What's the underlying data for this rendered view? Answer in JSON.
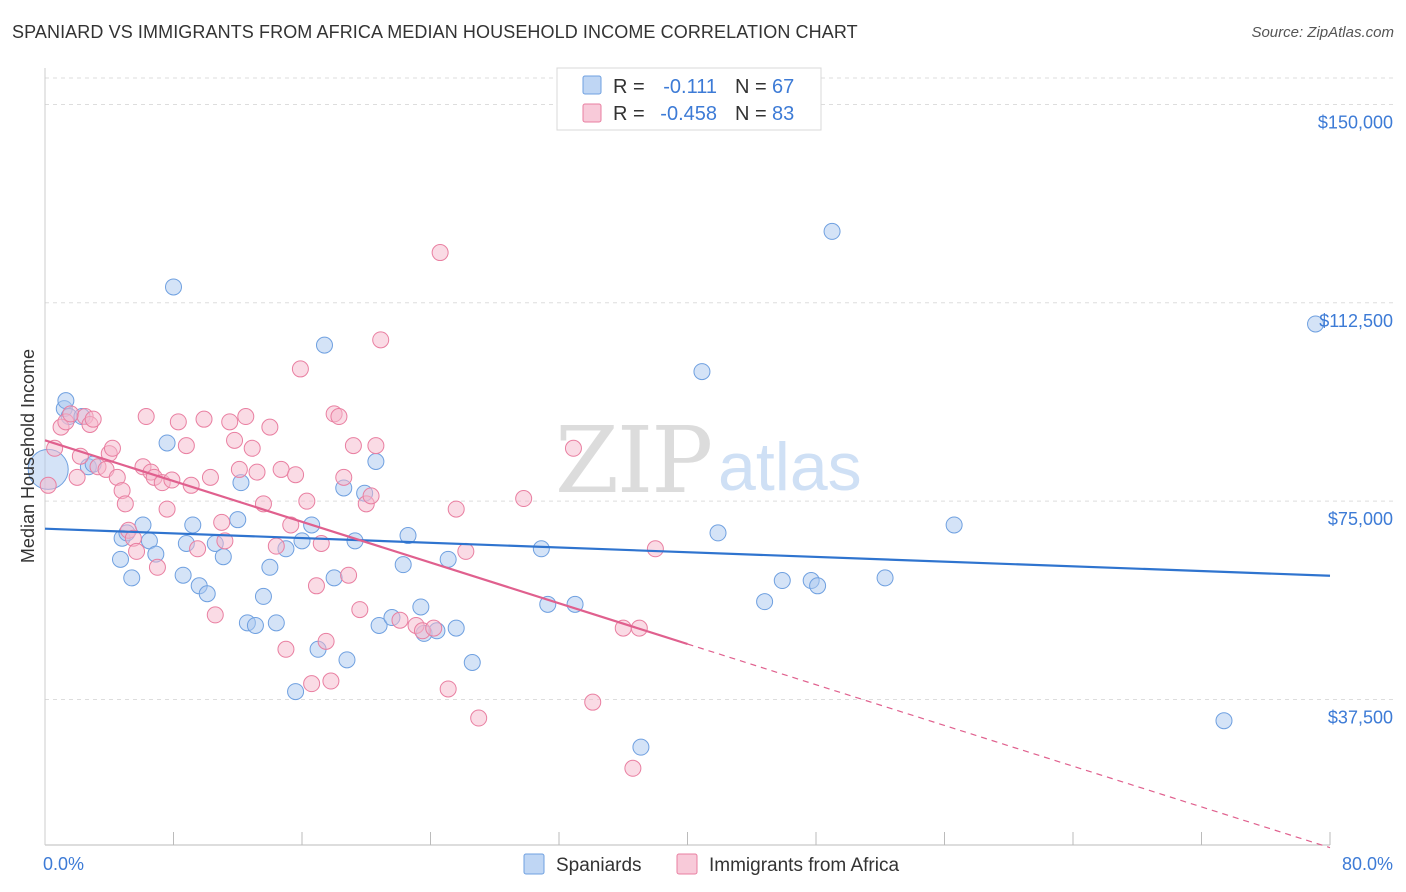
{
  "title": "SPANIARD VS IMMIGRANTS FROM AFRICA MEDIAN HOUSEHOLD INCOME CORRELATION CHART",
  "source": "Source: ZipAtlas.com",
  "watermark": {
    "zip": "ZIP",
    "atlas": "atlas"
  },
  "legend": {
    "rows": [
      {
        "r_label": "R =",
        "r_value": "-0.111",
        "n_label": "N =",
        "n_value": "67",
        "color": "#a9c8f0"
      },
      {
        "r_label": "R =",
        "r_value": "-0.458",
        "n_label": "N =",
        "n_value": "83",
        "color": "#f6b8cc"
      }
    ]
  },
  "bottom_legend": [
    "Spaniards",
    "Immigrants from Africa"
  ],
  "chart_data": {
    "type": "scatter",
    "title": "SPANIARD VS IMMIGRANTS FROM AFRICA MEDIAN HOUSEHOLD INCOME CORRELATION CHART",
    "xlabel": "",
    "ylabel": "Median Household Income",
    "xlim": [
      0,
      80
    ],
    "ylim": [
      10000,
      155000
    ],
    "x_tick_labels": [
      "0.0%",
      "80.0%"
    ],
    "y_ticks": [
      37500,
      75000,
      112500,
      150000
    ],
    "y_tick_labels": [
      "$37,500",
      "$75,000",
      "$112,500",
      "$150,000"
    ],
    "grid": true,
    "legend_position": "top-center",
    "series": [
      {
        "name": "Spaniards",
        "color": "#a9c8f0",
        "stroke": "#6fa0e0",
        "trend_color": "#2f74cf",
        "trend": {
          "x": [
            0,
            80
          ],
          "y": [
            69800,
            60900
          ]
        },
        "points": [
          [
            0.2,
            81000
          ],
          [
            1.2,
            92500
          ],
          [
            1.3,
            94000
          ],
          [
            1.5,
            91000
          ],
          [
            2.3,
            91000
          ],
          [
            2.7,
            81500
          ],
          [
            3.0,
            82000
          ],
          [
            4.7,
            64000
          ],
          [
            4.8,
            68000
          ],
          [
            5.1,
            69000
          ],
          [
            5.4,
            60500
          ],
          [
            6.1,
            70500
          ],
          [
            6.5,
            67500
          ],
          [
            6.9,
            65000
          ],
          [
            7.6,
            86000
          ],
          [
            8.0,
            115500
          ],
          [
            8.6,
            61000
          ],
          [
            8.8,
            67000
          ],
          [
            9.2,
            70500
          ],
          [
            9.6,
            59000
          ],
          [
            10.1,
            57500
          ],
          [
            10.6,
            67000
          ],
          [
            11.1,
            64500
          ],
          [
            12.0,
            71500
          ],
          [
            12.2,
            78500
          ],
          [
            12.6,
            52000
          ],
          [
            13.1,
            51500
          ],
          [
            13.6,
            57000
          ],
          [
            14.0,
            62500
          ],
          [
            14.4,
            52000
          ],
          [
            15.0,
            66000
          ],
          [
            15.6,
            39000
          ],
          [
            16.0,
            67500
          ],
          [
            16.6,
            70500
          ],
          [
            17.0,
            47000
          ],
          [
            17.4,
            104500
          ],
          [
            18.0,
            60500
          ],
          [
            18.6,
            77500
          ],
          [
            18.8,
            45000
          ],
          [
            19.3,
            67500
          ],
          [
            19.9,
            76500
          ],
          [
            20.6,
            82500
          ],
          [
            20.8,
            51500
          ],
          [
            21.6,
            53000
          ],
          [
            22.3,
            63000
          ],
          [
            22.6,
            68500
          ],
          [
            23.4,
            55000
          ],
          [
            23.6,
            50000
          ],
          [
            24.4,
            50500
          ],
          [
            25.1,
            64000
          ],
          [
            25.6,
            51000
          ],
          [
            26.6,
            44500
          ],
          [
            30.9,
            66000
          ],
          [
            31.3,
            55500
          ],
          [
            33.0,
            55500
          ],
          [
            37.1,
            28500
          ],
          [
            40.9,
            99500
          ],
          [
            41.9,
            69000
          ],
          [
            44.8,
            56000
          ],
          [
            45.9,
            60000
          ],
          [
            47.7,
            60000
          ],
          [
            48.1,
            59000
          ],
          [
            49.0,
            126000
          ],
          [
            52.3,
            60500
          ],
          [
            56.6,
            70500
          ],
          [
            73.4,
            33500
          ],
          [
            79.1,
            108500
          ]
        ]
      },
      {
        "name": "Immigrants from Africa",
        "color": "#f6b8cc",
        "stroke": "#e97fa1",
        "trend_color": "#e0608e",
        "trend": {
          "x": [
            0,
            80
          ],
          "y": [
            86500,
            9500
          ]
        },
        "trend_solid_until_x": 40,
        "points": [
          [
            0.2,
            78000
          ],
          [
            0.6,
            85000
          ],
          [
            1.0,
            89000
          ],
          [
            1.3,
            90000
          ],
          [
            1.6,
            91500
          ],
          [
            2.0,
            79500
          ],
          [
            2.2,
            83500
          ],
          [
            2.5,
            91000
          ],
          [
            2.8,
            89500
          ],
          [
            3.0,
            90500
          ],
          [
            3.3,
            81500
          ],
          [
            3.8,
            81000
          ],
          [
            4.0,
            84000
          ],
          [
            4.2,
            85000
          ],
          [
            4.5,
            79500
          ],
          [
            4.8,
            77000
          ],
          [
            5.0,
            74500
          ],
          [
            5.2,
            69500
          ],
          [
            5.5,
            68000
          ],
          [
            5.7,
            65500
          ],
          [
            6.1,
            81500
          ],
          [
            6.3,
            91000
          ],
          [
            6.6,
            80500
          ],
          [
            6.8,
            79500
          ],
          [
            7.0,
            62500
          ],
          [
            7.3,
            78500
          ],
          [
            7.6,
            73500
          ],
          [
            7.9,
            79000
          ],
          [
            8.3,
            90000
          ],
          [
            8.8,
            85500
          ],
          [
            9.1,
            78000
          ],
          [
            9.5,
            66000
          ],
          [
            9.9,
            90500
          ],
          [
            10.3,
            79500
          ],
          [
            10.6,
            53500
          ],
          [
            11.0,
            71000
          ],
          [
            11.2,
            67500
          ],
          [
            11.5,
            90000
          ],
          [
            11.8,
            86500
          ],
          [
            12.1,
            81000
          ],
          [
            12.5,
            91000
          ],
          [
            12.9,
            85000
          ],
          [
            13.2,
            80500
          ],
          [
            13.6,
            74500
          ],
          [
            14.0,
            89000
          ],
          [
            14.4,
            66500
          ],
          [
            14.7,
            81000
          ],
          [
            15.0,
            47000
          ],
          [
            15.3,
            70500
          ],
          [
            15.6,
            80000
          ],
          [
            15.9,
            100000
          ],
          [
            16.3,
            75000
          ],
          [
            16.6,
            40500
          ],
          [
            16.9,
            59000
          ],
          [
            17.2,
            67000
          ],
          [
            17.5,
            48500
          ],
          [
            17.8,
            41000
          ],
          [
            18.0,
            91500
          ],
          [
            18.3,
            91000
          ],
          [
            18.6,
            79500
          ],
          [
            18.9,
            61000
          ],
          [
            19.2,
            85500
          ],
          [
            19.6,
            54500
          ],
          [
            20.0,
            74500
          ],
          [
            20.3,
            76000
          ],
          [
            20.6,
            85500
          ],
          [
            20.9,
            105500
          ],
          [
            22.1,
            52500
          ],
          [
            23.1,
            51500
          ],
          [
            23.5,
            50500
          ],
          [
            24.2,
            51000
          ],
          [
            24.6,
            122000
          ],
          [
            25.1,
            39500
          ],
          [
            25.6,
            73500
          ],
          [
            26.2,
            65500
          ],
          [
            27.0,
            34000
          ],
          [
            29.8,
            75500
          ],
          [
            32.9,
            85000
          ],
          [
            34.1,
            37000
          ],
          [
            36.0,
            51000
          ],
          [
            36.6,
            24500
          ],
          [
            37.0,
            51000
          ],
          [
            38.0,
            66000
          ]
        ]
      }
    ]
  }
}
